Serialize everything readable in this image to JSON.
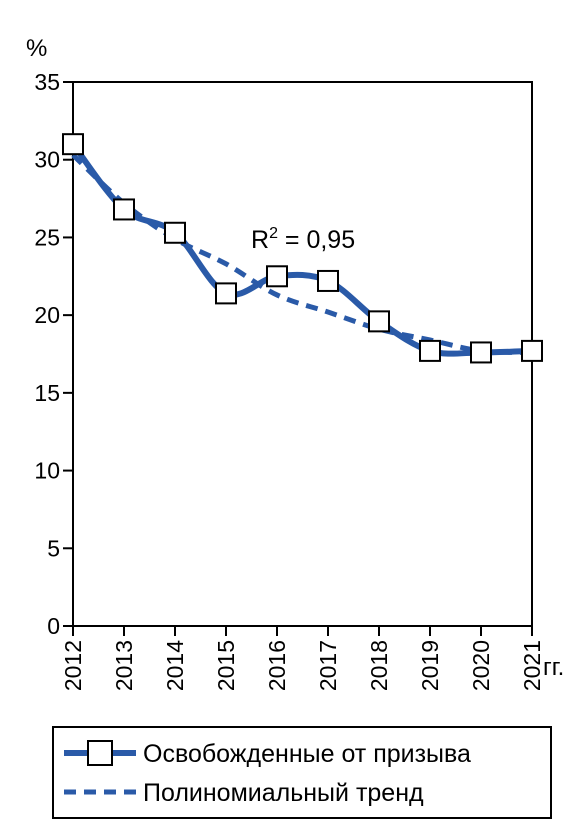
{
  "chart_data": {
    "type": "line",
    "title": "",
    "ylabel": "%",
    "xlabel": "гг.",
    "ylim": [
      0,
      35
    ],
    "yticks": [
      0,
      5,
      10,
      15,
      20,
      25,
      30,
      35
    ],
    "categories": [
      "2012",
      "2013",
      "2014",
      "2015",
      "2016",
      "2017",
      "2018",
      "2019",
      "2020",
      "2021"
    ],
    "series": [
      {
        "name": "Освобожденные от призыва",
        "values": [
          31.0,
          26.8,
          25.3,
          21.4,
          22.5,
          22.2,
          19.6,
          17.7,
          17.6,
          17.7
        ],
        "color": "#2a5aa8",
        "marker": "square-open"
      },
      {
        "name": "Полиномиальный тренд",
        "values": [
          30.3,
          27.2,
          24.9,
          23.3,
          21.3,
          20.2,
          19.1,
          18.4,
          17.7,
          17.6
        ],
        "color": "#2a5aa8",
        "style": "dashed"
      }
    ],
    "annotation": {
      "base": "R",
      "sup": "2",
      "rest": " = 0,95"
    },
    "grid": false,
    "legend_position": "bottom"
  }
}
